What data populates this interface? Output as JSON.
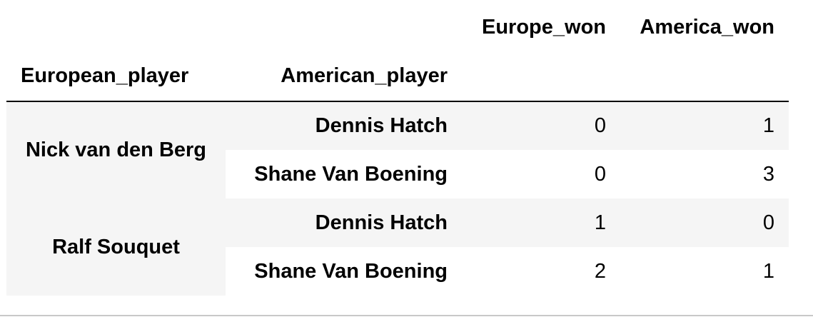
{
  "table": {
    "columns": [
      "Europe_won",
      "America_won"
    ],
    "index_names": [
      "European_player",
      "American_player"
    ],
    "groups": [
      {
        "european_player": "Nick van den Berg",
        "rows": [
          {
            "american_player": "Dennis Hatch",
            "europe_won": "0",
            "america_won": "1"
          },
          {
            "american_player": "Shane Van Boening",
            "europe_won": "0",
            "america_won": "3"
          }
        ]
      },
      {
        "european_player": "Ralf Souquet",
        "rows": [
          {
            "american_player": "Dennis Hatch",
            "europe_won": "1",
            "america_won": "0"
          },
          {
            "american_player": "Shane Van Boening",
            "europe_won": "2",
            "america_won": "1"
          }
        ]
      }
    ]
  },
  "colors": {
    "stripe": "#f5f5f5",
    "rule": "#000000"
  }
}
